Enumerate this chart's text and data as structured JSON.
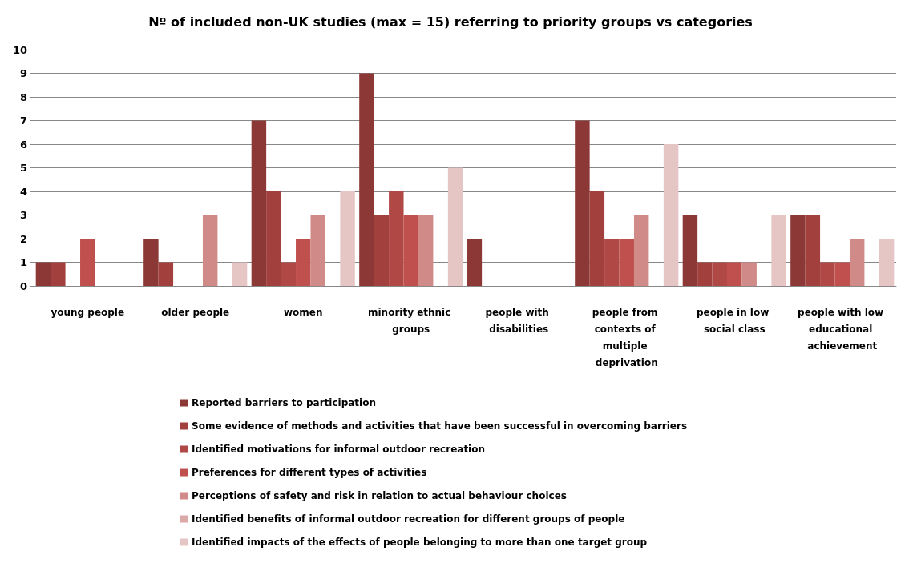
{
  "chart_data": {
    "type": "bar",
    "title": "Nº of included non-UK studies (max = 15) referring to priority groups vs categories",
    "categories": [
      "young people",
      "older people",
      "women",
      "minority ethnic groups",
      "people with disabilities",
      "people from contexts of multiple deprivation",
      "people in low social class",
      "people with low educational achievement"
    ],
    "series": [
      {
        "name": "Reported barriers to participation",
        "color": "#8c3836",
        "values": [
          1,
          2,
          7,
          9,
          2,
          7,
          3,
          3
        ]
      },
      {
        "name": "Some evidence of methods and activities that have been successful in overcoming barriers",
        "color": "#a2403e",
        "values": [
          1,
          1,
          4,
          3,
          0,
          4,
          1,
          3
        ]
      },
      {
        "name": "Identified motivations for informal outdoor recreation",
        "color": "#b04846",
        "values": [
          0,
          0,
          1,
          4,
          0,
          2,
          1,
          1
        ]
      },
      {
        "name": "Preferences for different types of activities",
        "color": "#c0504d",
        "values": [
          2,
          0,
          2,
          3,
          0,
          2,
          1,
          1
        ]
      },
      {
        "name": "Perceptions of safety and risk in relation to actual behaviour choices",
        "color": "#d08b89",
        "values": [
          0,
          3,
          3,
          3,
          0,
          3,
          1,
          2
        ]
      },
      {
        "name": "Identified benefits of informal outdoor recreation for different groups of people",
        "color": "#dba9a7",
        "values": [
          0,
          0,
          0,
          0,
          0,
          0,
          0,
          0
        ]
      },
      {
        "name": "Identified impacts of the effects of people belonging to more than one target group",
        "color": "#e6c6c5",
        "values": [
          0,
          1,
          4,
          5,
          0,
          6,
          3,
          2
        ]
      }
    ],
    "ylim": [
      0,
      10
    ],
    "yticks": [
      0,
      1,
      2,
      3,
      4,
      5,
      6,
      7,
      8,
      9,
      10
    ],
    "grid": "y",
    "legend": "bottom"
  }
}
